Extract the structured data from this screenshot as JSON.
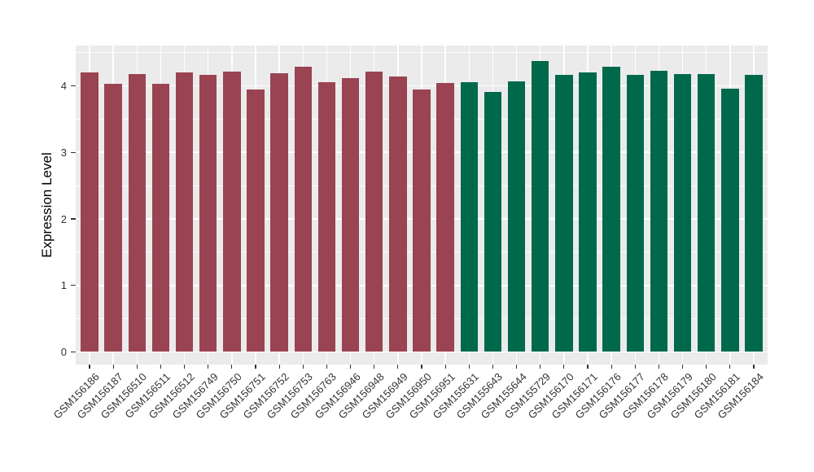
{
  "chart_data": {
    "type": "bar",
    "title": "",
    "xlabel": "",
    "ylabel": "Expression Level",
    "ylim": [
      0,
      4.6
    ],
    "yticks": [
      0,
      1,
      2,
      3,
      4
    ],
    "grid": true,
    "legend_position": "none",
    "categories": [
      "GSM156186",
      "GSM156187",
      "GSM156510",
      "GSM156511",
      "GSM156512",
      "GSM156749",
      "GSM156750",
      "GSM156751",
      "GSM156752",
      "GSM156753",
      "GSM156763",
      "GSM156946",
      "GSM156948",
      "GSM156949",
      "GSM156950",
      "GSM156951",
      "GSM155631",
      "GSM155643",
      "GSM155644",
      "GSM155729",
      "GSM156170",
      "GSM156171",
      "GSM156176",
      "GSM156177",
      "GSM156178",
      "GSM156179",
      "GSM156180",
      "GSM156181",
      "GSM156184"
    ],
    "values": [
      4.2,
      4.03,
      4.18,
      4.03,
      4.2,
      4.17,
      4.22,
      3.95,
      4.19,
      4.29,
      4.06,
      4.12,
      4.22,
      4.14,
      3.94,
      4.04,
      4.06,
      3.91,
      4.07,
      4.37,
      4.16,
      4.2,
      4.29,
      4.17,
      4.23,
      4.18,
      4.18,
      3.96,
      4.16
    ],
    "bar_groups": [
      "red",
      "red",
      "red",
      "red",
      "red",
      "red",
      "red",
      "red",
      "red",
      "red",
      "red",
      "red",
      "red",
      "red",
      "red",
      "red",
      "green",
      "green",
      "green",
      "green",
      "green",
      "green",
      "green",
      "green",
      "green",
      "green",
      "green",
      "green",
      "green"
    ],
    "group_colors": {
      "red": "#9A4352",
      "green": "#00694B"
    },
    "colors": {
      "panel_bg": "#EBEBEB",
      "grid": "#FFFFFF",
      "axis_text": "#333333",
      "tick": "#333333"
    }
  }
}
